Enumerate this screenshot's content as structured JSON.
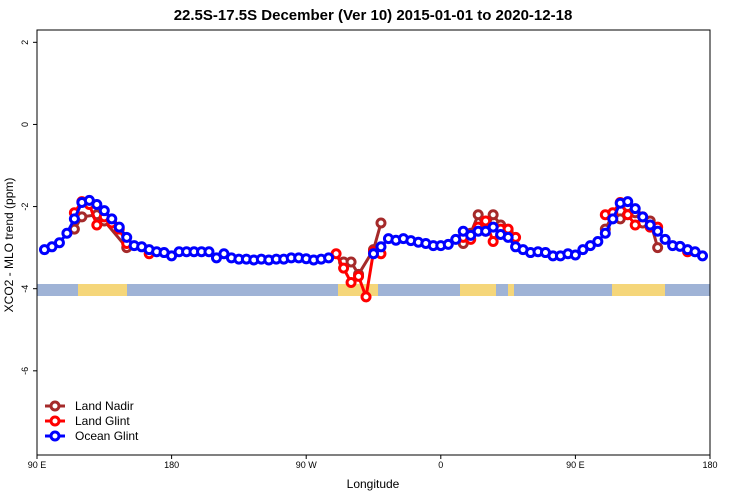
{
  "chart_data": {
    "type": "line",
    "title": "22.5S-17.5S December (Ver 10)   2015-01-01 to 2020-12-18",
    "xlabel": "Longitude",
    "ylabel": "XCO2 - MLO trend (ppm)",
    "xlim": [
      90,
      540
    ],
    "ylim": [
      -8.05,
      2.3
    ],
    "xticks": [
      {
        "value": 90,
        "label": "90 E"
      },
      180,
      {
        "value": 270,
        "label": "90 W"
      },
      {
        "value": 360,
        "label": "0"
      },
      {
        "value": 450,
        "label": "90 E"
      },
      {
        "value": 540,
        "label": "180"
      }
    ],
    "yticks": [
      -6,
      -4,
      -2,
      0,
      2
    ],
    "legend": "bottom-left",
    "series": [
      {
        "name": "Land Nadir",
        "color": "#a52a2a",
        "x": [
          115,
          120,
          130,
          135,
          150,
          160,
          295,
          300,
          305,
          315,
          320,
          340,
          375,
          380,
          385,
          390,
          395,
          400,
          405,
          440,
          470,
          475,
          480,
          485,
          490,
          495,
          500,
          505
        ],
        "values": [
          -2.55,
          -2.25,
          -2.2,
          -2.35,
          -3.0,
          null,
          -3.35,
          -3.35,
          -3.65,
          -3.05,
          -2.4,
          null,
          -2.9,
          -2.65,
          -2.2,
          -2.6,
          -2.2,
          -2.45,
          -2.6,
          null,
          -2.55,
          -2.2,
          -2.3,
          -2.0,
          -2.15,
          -2.4,
          -2.35,
          -3.0
        ]
      },
      {
        "name": "Land Glint",
        "color": "#ff0000",
        "x": [
          115,
          120,
          125,
          130,
          135,
          140,
          145,
          150,
          155,
          165,
          170,
          290,
          295,
          300,
          305,
          310,
          315,
          320,
          325,
          375,
          380,
          385,
          390,
          395,
          400,
          405,
          410,
          415,
          470,
          475,
          480,
          485,
          490,
          495,
          500,
          505,
          510,
          525
        ],
        "values": [
          -2.15,
          -1.88,
          -1.95,
          -2.45,
          -2.25,
          -2.4,
          -2.55,
          -2.9,
          null,
          -3.15,
          null,
          -3.15,
          -3.5,
          -3.85,
          -3.7,
          -4.2,
          -3.1,
          -3.15,
          null,
          -2.75,
          -2.8,
          -2.5,
          -2.35,
          -2.85,
          -2.55,
          -2.55,
          -2.75,
          null,
          -2.2,
          -2.15,
          -1.9,
          -2.2,
          -2.45,
          -2.25,
          -2.5,
          -2.5,
          null,
          -3.1
        ]
      },
      {
        "name": "Ocean Glint",
        "color": "#0000ff",
        "x": [
          95,
          100,
          105,
          110,
          115,
          120,
          125,
          130,
          135,
          140,
          145,
          150,
          155,
          160,
          165,
          170,
          175,
          180,
          185,
          190,
          195,
          200,
          205,
          210,
          215,
          220,
          225,
          230,
          235,
          240,
          245,
          250,
          255,
          260,
          265,
          270,
          275,
          280,
          285,
          300,
          315,
          320,
          325,
          330,
          335,
          340,
          345,
          350,
          355,
          360,
          365,
          370,
          375,
          380,
          385,
          390,
          395,
          400,
          405,
          410,
          415,
          420,
          425,
          430,
          435,
          440,
          445,
          450,
          455,
          460,
          465,
          470,
          475,
          480,
          485,
          490,
          495,
          500,
          505,
          510,
          515,
          520,
          525,
          530,
          535
        ],
        "values": [
          -3.05,
          -2.98,
          -2.88,
          -2.65,
          -2.3,
          -1.9,
          -1.85,
          -1.95,
          -2.1,
          -2.3,
          -2.5,
          -2.75,
          -2.95,
          -2.98,
          -3.05,
          -3.1,
          -3.12,
          -3.2,
          -3.1,
          -3.1,
          -3.1,
          -3.1,
          -3.1,
          -3.25,
          -3.15,
          -3.25,
          -3.28,
          -3.28,
          -3.3,
          -3.28,
          -3.3,
          -3.28,
          -3.28,
          -3.25,
          -3.25,
          -3.27,
          -3.3,
          -3.28,
          -3.25,
          null,
          -3.15,
          -2.98,
          -2.78,
          -2.82,
          -2.78,
          -2.83,
          -2.87,
          -2.9,
          -2.95,
          -2.95,
          -2.92,
          -2.8,
          -2.6,
          -2.7,
          -2.6,
          -2.6,
          -2.5,
          -2.68,
          -2.75,
          -2.98,
          -3.05,
          -3.12,
          -3.1,
          -3.12,
          -3.2,
          -3.2,
          -3.15,
          -3.18,
          -3.05,
          -2.95,
          -2.85,
          -2.65,
          -2.3,
          -1.92,
          -1.88,
          -2.05,
          -2.25,
          -2.45,
          -2.6,
          -2.8,
          -2.95,
          -2.97,
          -3.05,
          -3.1,
          -3.2
        ]
      }
    ]
  }
}
